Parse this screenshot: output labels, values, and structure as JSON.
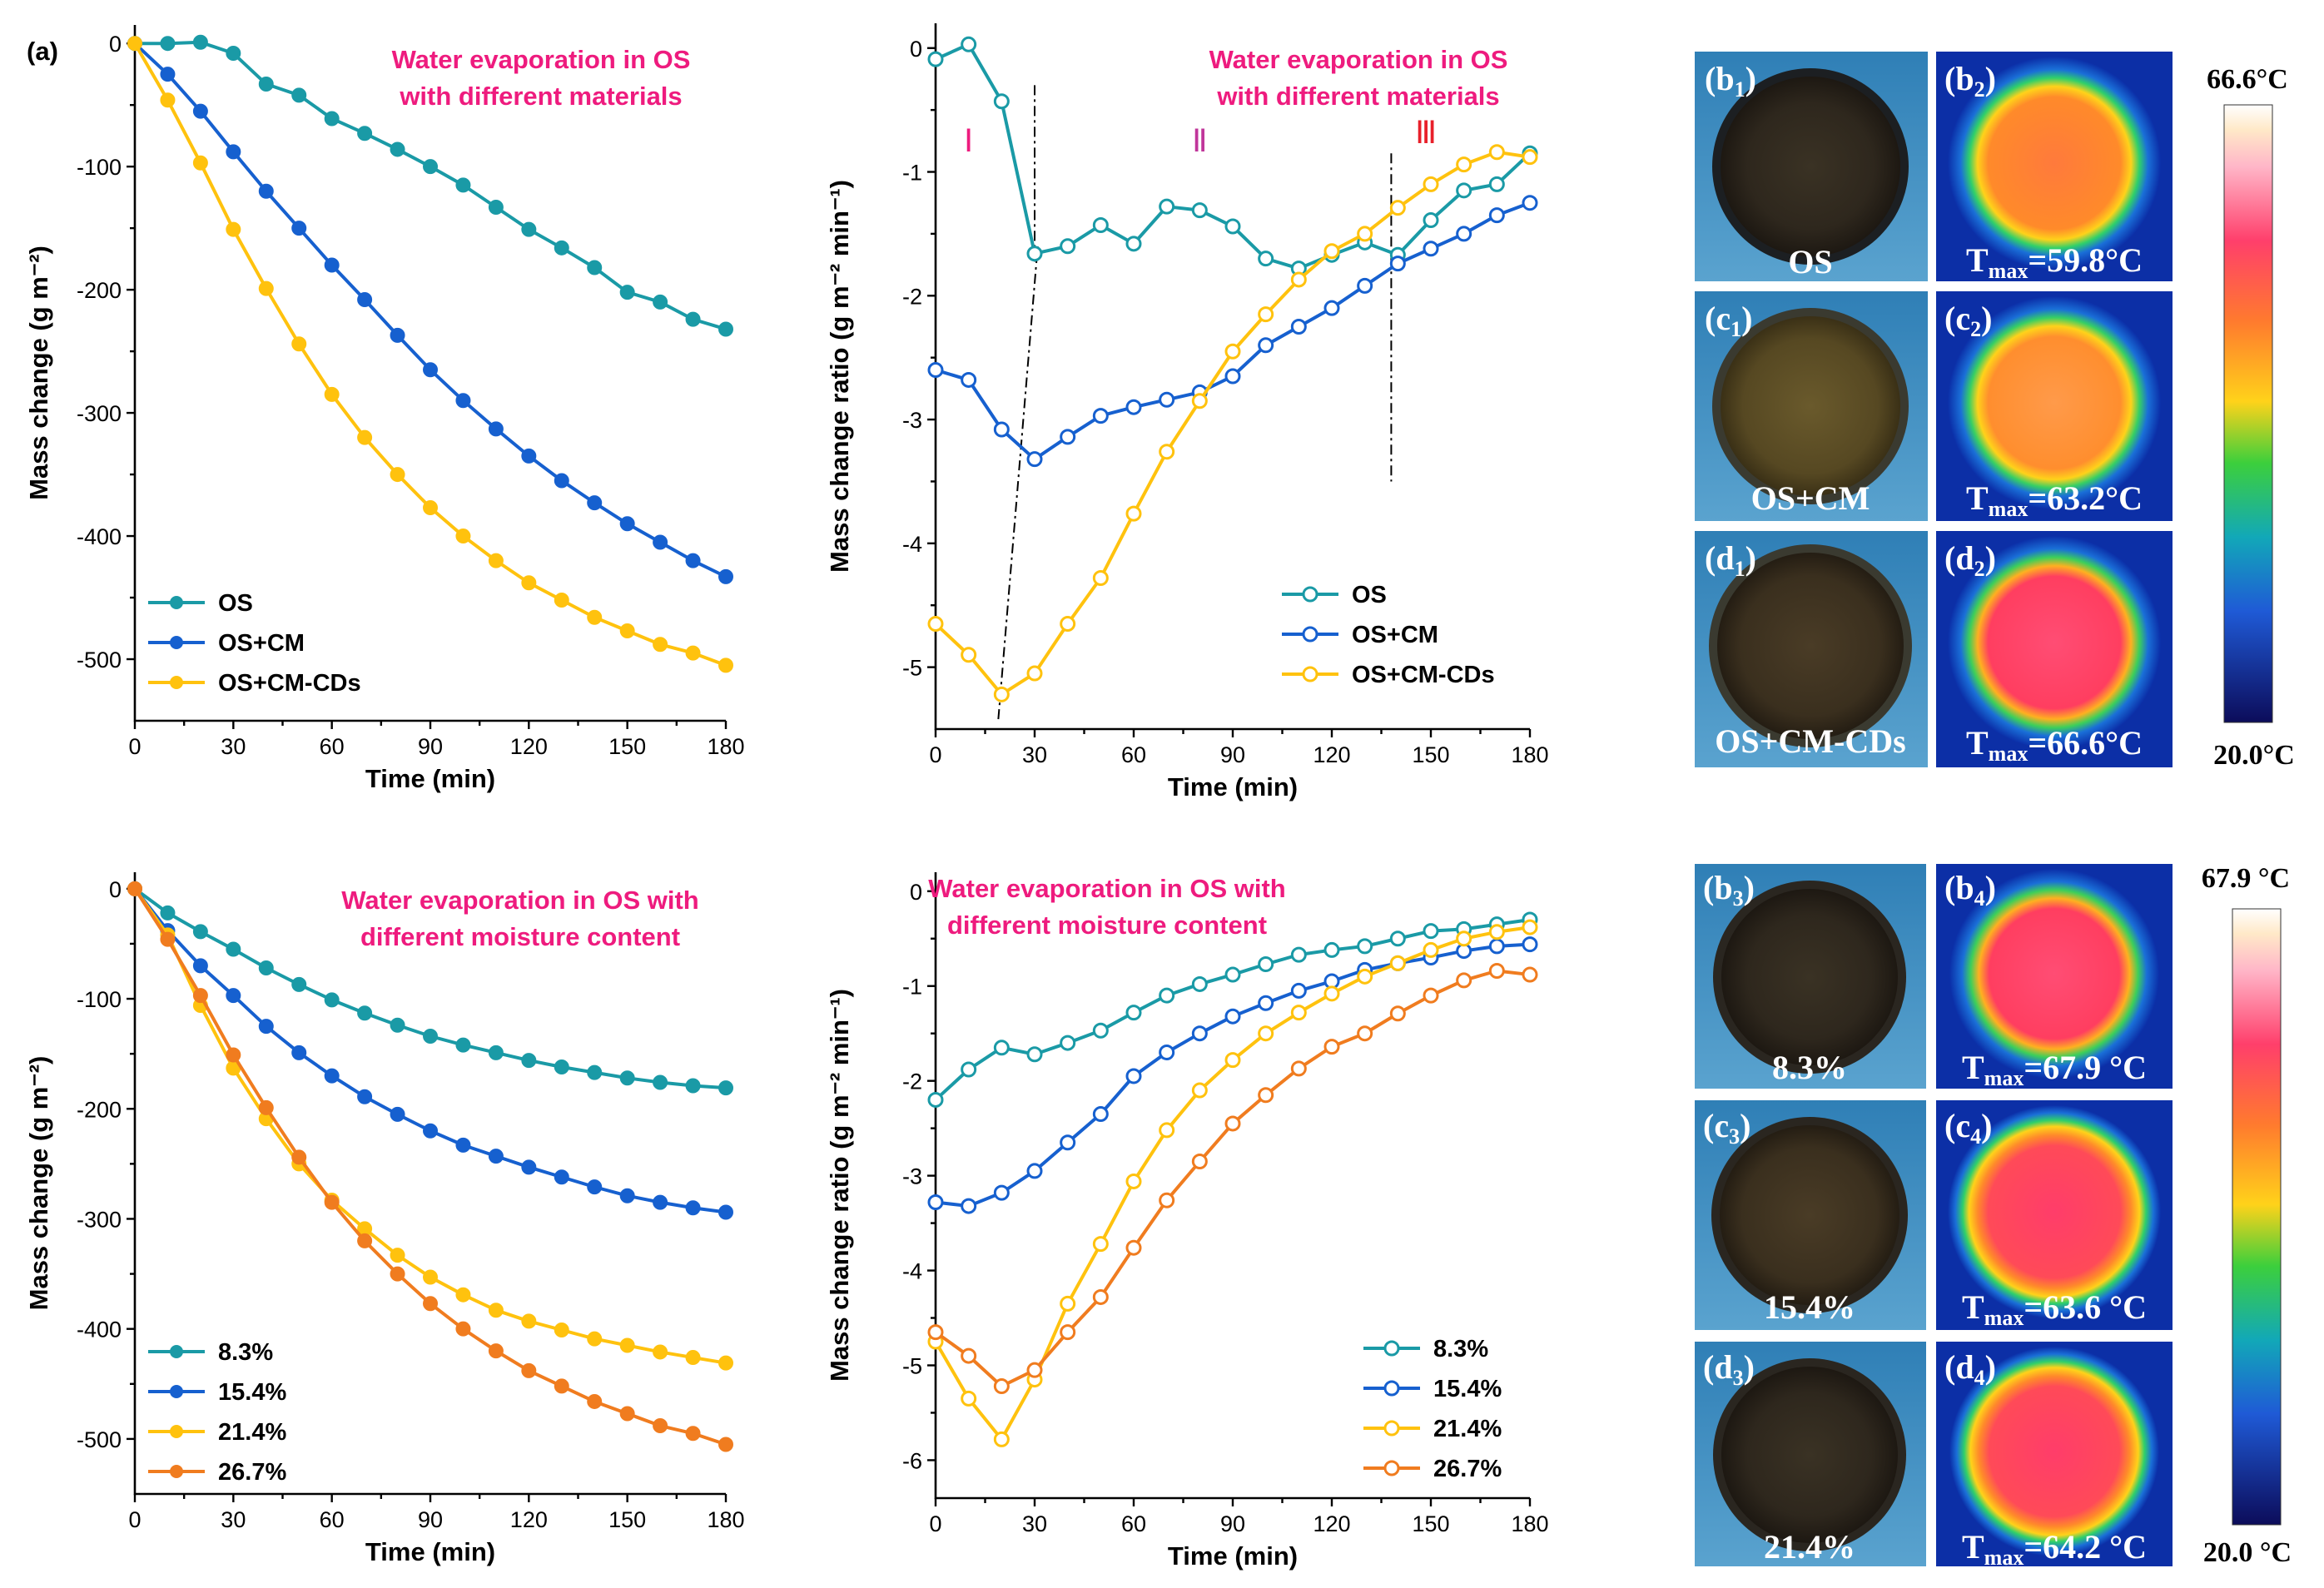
{
  "figure_label": "(a)",
  "chart_data": [
    {
      "id": "c1",
      "type": "line",
      "title": "Water evaporation in OS with different materials",
      "title_lines": [
        "Water evaporation in OS",
        "with different materials"
      ],
      "xlabel": "Time (min)",
      "ylabel": "Mass change (g m⁻²)",
      "xlim": [
        0,
        180
      ],
      "ylim": [
        -550,
        15
      ],
      "xticks": [
        0,
        30,
        60,
        90,
        120,
        150,
        180
      ],
      "yticks": [
        0,
        -100,
        -200,
        -300,
        -400,
        -500
      ],
      "x": [
        0,
        10,
        20,
        30,
        40,
        50,
        60,
        70,
        80,
        90,
        100,
        110,
        120,
        130,
        140,
        150,
        160,
        170,
        180
      ],
      "marker": "filled",
      "series": [
        {
          "name": "OS",
          "color": "#1a9aa6",
          "values": [
            0,
            0,
            1,
            -8,
            -33,
            -42,
            -61,
            -73,
            -86,
            -100,
            -115,
            -133,
            -151,
            -166,
            -182,
            -202,
            -210,
            -224,
            -232
          ]
        },
        {
          "name": "OS+CM",
          "color": "#1660cf",
          "values": [
            0,
            -25,
            -55,
            -88,
            -120,
            -150,
            -180,
            -208,
            -237,
            -265,
            -290,
            -313,
            -335,
            -355,
            -373,
            -390,
            -405,
            -420,
            -433
          ]
        },
        {
          "name": "OS+CM-CDs",
          "color": "#ffc20e",
          "values": [
            0,
            -46,
            -97,
            -151,
            -199,
            -244,
            -285,
            -320,
            -350,
            -377,
            -400,
            -420,
            -438,
            -452,
            -466,
            -477,
            -488,
            -495,
            -505
          ]
        }
      ]
    },
    {
      "id": "c2",
      "type": "line",
      "title": "Water evaporation in OS with different materials",
      "title_lines": [
        "Water evaporation in OS",
        "with different materials"
      ],
      "xlabel": "Time (min)",
      "ylabel": "Mass change ratio (g m⁻² min⁻¹)",
      "xlim": [
        0,
        180
      ],
      "ylim": [
        -5.5,
        0.2
      ],
      "xticks": [
        0,
        30,
        60,
        90,
        120,
        150,
        180
      ],
      "yticks": [
        0,
        -1,
        -2,
        -3,
        -4,
        -5
      ],
      "x": [
        0,
        10,
        20,
        30,
        40,
        50,
        60,
        70,
        80,
        90,
        100,
        110,
        120,
        130,
        140,
        150,
        160,
        170,
        180
      ],
      "marker": "open",
      "regions": [
        "Ⅰ",
        "Ⅱ",
        "Ⅲ"
      ],
      "series": [
        {
          "name": "OS",
          "color": "#1a9aa6",
          "values": [
            -0.09,
            0.03,
            -0.43,
            -1.66,
            -1.6,
            -1.43,
            -1.58,
            -1.28,
            -1.31,
            -1.44,
            -1.7,
            -1.78,
            -1.67,
            -1.57,
            -1.67,
            -1.39,
            -1.15,
            -1.1,
            -0.85
          ]
        },
        {
          "name": "OS+CM",
          "color": "#1660cf",
          "values": [
            -2.6,
            -2.68,
            -3.08,
            -3.32,
            -3.14,
            -2.97,
            -2.9,
            -2.84,
            -2.78,
            -2.65,
            -2.4,
            -2.25,
            -2.1,
            -1.92,
            -1.74,
            -1.62,
            -1.5,
            -1.35,
            -1.25
          ]
        },
        {
          "name": "OS+CM-CDs",
          "color": "#ffc20e",
          "values": [
            -4.65,
            -4.9,
            -5.22,
            -5.05,
            -4.65,
            -4.28,
            -3.76,
            -3.26,
            -2.85,
            -2.45,
            -2.15,
            -1.87,
            -1.64,
            -1.5,
            -1.29,
            -1.1,
            -0.94,
            -0.84,
            -0.88
          ]
        }
      ]
    },
    {
      "id": "c3",
      "type": "line",
      "title": "Water evaporation  in OS with different moisture content",
      "title_lines": [
        "Water evaporation  in OS with",
        "different moisture content"
      ],
      "xlabel": "Time (min)",
      "ylabel": "Mass change (g m⁻²)",
      "xlim": [
        0,
        180
      ],
      "ylim": [
        -550,
        15
      ],
      "xticks": [
        0,
        30,
        60,
        90,
        120,
        150,
        180
      ],
      "yticks": [
        0,
        -100,
        -200,
        -300,
        -400,
        -500
      ],
      "x": [
        0,
        10,
        20,
        30,
        40,
        50,
        60,
        70,
        80,
        90,
        100,
        110,
        120,
        130,
        140,
        150,
        160,
        170,
        180
      ],
      "marker": "filled",
      "series": [
        {
          "name": "8.3%",
          "color": "#1a9aa6",
          "values": [
            0,
            -22,
            -39,
            -55,
            -72,
            -87,
            -101,
            -113,
            -124,
            -134,
            -142,
            -149,
            -156,
            -162,
            -167,
            -172,
            -176,
            -179,
            -181
          ]
        },
        {
          "name": "15.4%",
          "color": "#1660cf",
          "values": [
            0,
            -38,
            -70,
            -97,
            -125,
            -149,
            -170,
            -189,
            -205,
            -220,
            -233,
            -243,
            -253,
            -262,
            -271,
            -279,
            -285,
            -290,
            -294
          ]
        },
        {
          "name": "21.4%",
          "color": "#ffc20e",
          "values": [
            0,
            -42,
            -106,
            -163,
            -209,
            -250,
            -283,
            -309,
            -333,
            -353,
            -369,
            -383,
            -393,
            -401,
            -409,
            -415,
            -421,
            -426,
            -431
          ]
        },
        {
          "name": "26.7%",
          "color": "#f07c1f",
          "values": [
            0,
            -46,
            -97,
            -151,
            -199,
            -244,
            -285,
            -320,
            -350,
            -377,
            -400,
            -420,
            -438,
            -452,
            -466,
            -477,
            -488,
            -495,
            -505
          ]
        }
      ]
    },
    {
      "id": "c4",
      "type": "line",
      "title": "Water evaporation  in OS with different moisture content",
      "title_lines": [
        "Water evaporation  in OS with",
        "different moisture content"
      ],
      "xlabel": "Time (min)",
      "ylabel": "Mass change ratio (g m⁻² min⁻¹)",
      "xlim": [
        0,
        180
      ],
      "ylim": [
        -6.4,
        0.2
      ],
      "xticks": [
        0,
        30,
        60,
        90,
        120,
        150,
        180
      ],
      "yticks": [
        0,
        -1,
        -2,
        -3,
        -4,
        -5,
        -6
      ],
      "x": [
        0,
        10,
        20,
        30,
        40,
        50,
        60,
        70,
        80,
        90,
        100,
        110,
        120,
        130,
        140,
        150,
        160,
        170,
        180
      ],
      "marker": "open",
      "series": [
        {
          "name": "8.3%",
          "color": "#1a9aa6",
          "values": [
            -2.2,
            -1.88,
            -1.65,
            -1.72,
            -1.6,
            -1.47,
            -1.28,
            -1.1,
            -0.98,
            -0.88,
            -0.77,
            -0.67,
            -0.62,
            -0.58,
            -0.5,
            -0.42,
            -0.4,
            -0.35,
            -0.3
          ]
        },
        {
          "name": "15.4%",
          "color": "#1660cf",
          "values": [
            -3.28,
            -3.32,
            -3.18,
            -2.95,
            -2.65,
            -2.35,
            -1.95,
            -1.7,
            -1.5,
            -1.32,
            -1.18,
            -1.05,
            -0.95,
            -0.83,
            -0.76,
            -0.7,
            -0.63,
            -0.58,
            -0.56
          ]
        },
        {
          "name": "21.4%",
          "color": "#ffc20e",
          "values": [
            -4.75,
            -5.35,
            -5.78,
            -5.15,
            -4.35,
            -3.72,
            -3.06,
            -2.52,
            -2.1,
            -1.78,
            -1.5,
            -1.28,
            -1.08,
            -0.9,
            -0.76,
            -0.62,
            -0.5,
            -0.43,
            -0.38
          ]
        },
        {
          "name": "26.7%",
          "color": "#f07c1f",
          "values": [
            -4.65,
            -4.9,
            -5.22,
            -5.05,
            -4.65,
            -4.28,
            -3.76,
            -3.26,
            -2.85,
            -2.45,
            -2.15,
            -1.87,
            -1.64,
            -1.5,
            -1.29,
            -1.1,
            -0.94,
            -0.84,
            -0.88
          ]
        }
      ]
    }
  ],
  "photos": {
    "top": {
      "b1": {
        "tag": "b",
        "sub": "1",
        "label": "OS"
      },
      "b2": {
        "tag": "b",
        "sub": "2",
        "tmax": "=59.8°C"
      },
      "c1": {
        "tag": "c",
        "sub": "1",
        "label": "OS+CM"
      },
      "c2": {
        "tag": "c",
        "sub": "2",
        "tmax": "=63.2°C"
      },
      "d1": {
        "tag": "d",
        "sub": "1",
        "label": "OS+CM-CDs"
      },
      "d2": {
        "tag": "d",
        "sub": "2",
        "tmax": "=66.6°C"
      },
      "scale_max": "66.6°C",
      "scale_min": "20.0°C"
    },
    "bottom": {
      "b3": {
        "tag": "b",
        "sub": "3",
        "label": "8.3%"
      },
      "b4": {
        "tag": "b",
        "sub": "4",
        "tmax": "=67.9 °C"
      },
      "c3": {
        "tag": "c",
        "sub": "3",
        "label": "15.4%"
      },
      "c4": {
        "tag": "c",
        "sub": "4",
        "tmax": "=63.6 °C"
      },
      "d3": {
        "tag": "d",
        "sub": "3",
        "label": "21.4%"
      },
      "d4": {
        "tag": "d",
        "sub": "4",
        "tmax": "=64.2 °C"
      },
      "scale_max": "67.9 °C",
      "scale_min": "20.0 °C"
    },
    "tmax_prefix": "T",
    "tmax_sub": "max"
  },
  "colors": {
    "annotation": "#ee1b7e",
    "region_I": "#ee1b7e",
    "region_II": "#c0359a",
    "region_III": "#e8202a"
  }
}
